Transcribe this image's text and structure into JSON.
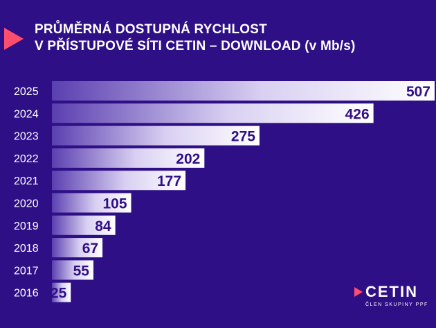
{
  "colors": {
    "background": "#2f0f86",
    "bar_start": "#5a3fb0",
    "bar_end": "#ffffff",
    "value_text": "#2f0f86",
    "accent": "#ff4d6d"
  },
  "chart_data": {
    "type": "bar",
    "orientation": "horizontal",
    "title": "PRŮMĚRNÁ DOSTUPNÁ RYCHLOST",
    "subtitle": "V PŘÍSTUPOVÉ SÍTI CETIN – DOWNLOAD (v Mb/s)",
    "categories": [
      "2025",
      "2024",
      "2023",
      "2022",
      "2021",
      "2020",
      "2019",
      "2018",
      "2017",
      "2016"
    ],
    "values": [
      507,
      426,
      275,
      202,
      177,
      105,
      84,
      67,
      55,
      25
    ],
    "xlim": [
      0,
      507
    ],
    "grid": false,
    "legend": "none"
  },
  "logo": {
    "name": "CETIN",
    "tagline": "ČLEN SKUPINY PPF",
    "icon": "play-triangle-icon"
  },
  "title_icon": "play-triangle-icon"
}
